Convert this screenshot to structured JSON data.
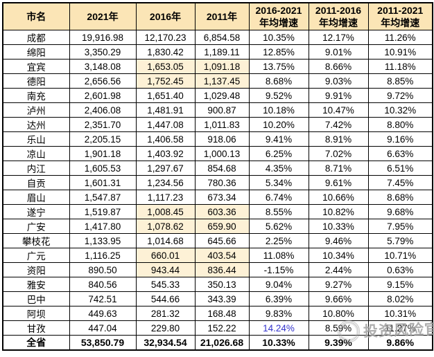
{
  "colors": {
    "header_bg": "#FBE5B6",
    "highlight_bg": "#FDF1D6",
    "border": "#000000",
    "accent_blue": "#3333CC",
    "watermark_gray": "#7D7D7D"
  },
  "chart_data": {
    "type": "table",
    "columns": [
      {
        "label": "市名",
        "sublabel": ""
      },
      {
        "label": "2021年",
        "sublabel": ""
      },
      {
        "label": "2016年",
        "sublabel": ""
      },
      {
        "label": "2011年",
        "sublabel": ""
      },
      {
        "label": "2016-2021",
        "sublabel": "年均增速"
      },
      {
        "label": "2011-2016",
        "sublabel": "年均增速"
      },
      {
        "label": "2011-2021",
        "sublabel": "年均增速"
      }
    ],
    "rows": [
      {
        "name": "成都",
        "v2021": "19,916.98",
        "v2016": "12,170.23",
        "v2011": "6,854.58",
        "g2016_2021": "10.35%",
        "g2011_2016": "12.17%",
        "g2011_2021": "11.26%",
        "highlight": false,
        "blue_g2016_2021": false,
        "total": false
      },
      {
        "name": "绵阳",
        "v2021": "3,350.29",
        "v2016": "1,830.42",
        "v2011": "1,189.11",
        "g2016_2021": "12.85%",
        "g2011_2016": "9.01%",
        "g2011_2021": "10.91%",
        "highlight": false,
        "blue_g2016_2021": false,
        "total": false
      },
      {
        "name": "宜宾",
        "v2021": "3,148.08",
        "v2016": "1,653.05",
        "v2011": "1,091.18",
        "g2016_2021": "13.75%",
        "g2011_2016": "8.66%",
        "g2011_2021": "11.18%",
        "highlight": true,
        "blue_g2016_2021": false,
        "total": false
      },
      {
        "name": "德阳",
        "v2021": "2,656.56",
        "v2016": "1,752.45",
        "v2011": "1,137.45",
        "g2016_2021": "8.68%",
        "g2011_2016": "9.03%",
        "g2011_2021": "8.85%",
        "highlight": true,
        "blue_g2016_2021": false,
        "total": false
      },
      {
        "name": "南充",
        "v2021": "2,601.98",
        "v2016": "1,651.40",
        "v2011": "1,029.48",
        "g2016_2021": "9.52%",
        "g2011_2016": "9.91%",
        "g2011_2021": "9.72%",
        "highlight": false,
        "blue_g2016_2021": false,
        "total": false
      },
      {
        "name": "泸州",
        "v2021": "2,406.08",
        "v2016": "1,481.91",
        "v2011": "900.87",
        "g2016_2021": "10.18%",
        "g2011_2016": "10.47%",
        "g2011_2021": "10.32%",
        "highlight": false,
        "blue_g2016_2021": false,
        "total": false
      },
      {
        "name": "达州",
        "v2021": "2,351.70",
        "v2016": "1,447.08",
        "v2011": "1,011.83",
        "g2016_2021": "10.20%",
        "g2011_2016": "7.42%",
        "g2011_2021": "8.80%",
        "highlight": false,
        "blue_g2016_2021": false,
        "total": false
      },
      {
        "name": "乐山",
        "v2021": "2,205.15",
        "v2016": "1,406.58",
        "v2011": "918.06",
        "g2016_2021": "9.41%",
        "g2011_2016": "8.91%",
        "g2011_2021": "9.16%",
        "highlight": false,
        "blue_g2016_2021": false,
        "total": false
      },
      {
        "name": "凉山",
        "v2021": "1,901.18",
        "v2016": "1,403.92",
        "v2011": "1,000.13",
        "g2016_2021": "6.25%",
        "g2011_2016": "7.02%",
        "g2011_2021": "6.63%",
        "highlight": false,
        "blue_g2016_2021": false,
        "total": false
      },
      {
        "name": "内江",
        "v2021": "1,605.53",
        "v2016": "1,297.67",
        "v2011": "854.68",
        "g2016_2021": "4.35%",
        "g2011_2016": "8.71%",
        "g2011_2021": "6.51%",
        "highlight": false,
        "blue_g2016_2021": false,
        "total": false
      },
      {
        "name": "自贡",
        "v2021": "1,601.31",
        "v2016": "1,234.56",
        "v2011": "780.36",
        "g2016_2021": "5.34%",
        "g2011_2016": "9.61%",
        "g2011_2021": "7.45%",
        "highlight": false,
        "blue_g2016_2021": false,
        "total": false
      },
      {
        "name": "眉山",
        "v2021": "1,547.87",
        "v2016": "1,117.23",
        "v2011": "673.34",
        "g2016_2021": "6.74%",
        "g2011_2016": "10.66%",
        "g2011_2021": "8.68%",
        "highlight": false,
        "blue_g2016_2021": false,
        "total": false
      },
      {
        "name": "遂宁",
        "v2021": "1,519.87",
        "v2016": "1,008.45",
        "v2011": "603.36",
        "g2016_2021": "8.55%",
        "g2011_2016": "10.82%",
        "g2011_2021": "9.68%",
        "highlight": true,
        "blue_g2016_2021": false,
        "total": false
      },
      {
        "name": "广安",
        "v2021": "1,417.80",
        "v2016": "1,078.62",
        "v2011": "659.90",
        "g2016_2021": "5.62%",
        "g2011_2016": "10.33%",
        "g2011_2021": "7.95%",
        "highlight": true,
        "blue_g2016_2021": false,
        "total": false
      },
      {
        "name": "攀枝花",
        "v2021": "1,133.95",
        "v2016": "1,014.68",
        "v2011": "645.66",
        "g2016_2021": "2.25%",
        "g2011_2016": "9.46%",
        "g2011_2021": "5.79%",
        "highlight": false,
        "blue_g2016_2021": false,
        "total": false
      },
      {
        "name": "广元",
        "v2021": "1,116.25",
        "v2016": "660.01",
        "v2011": "403.54",
        "g2016_2021": "11.08%",
        "g2011_2016": "10.34%",
        "g2011_2021": "10.71%",
        "highlight": true,
        "blue_g2016_2021": false,
        "total": false
      },
      {
        "name": "资阳",
        "v2021": "890.50",
        "v2016": "943.44",
        "v2011": "836.44",
        "g2016_2021": "-1.15%",
        "g2011_2016": "2.44%",
        "g2011_2021": "0.63%",
        "highlight": true,
        "blue_g2016_2021": false,
        "total": false
      },
      {
        "name": "雅安",
        "v2021": "840.56",
        "v2016": "545.33",
        "v2011": "350.13",
        "g2016_2021": "9.04%",
        "g2011_2016": "9.27%",
        "g2011_2021": "9.15%",
        "highlight": false,
        "blue_g2016_2021": false,
        "total": false
      },
      {
        "name": "巴中",
        "v2021": "742.51",
        "v2016": "544.66",
        "v2011": "343.39",
        "g2016_2021": "6.39%",
        "g2011_2016": "9.66%",
        "g2011_2021": "8.02%",
        "highlight": false,
        "blue_g2016_2021": false,
        "total": false
      },
      {
        "name": "阿坝",
        "v2021": "449.63",
        "v2016": "281.32",
        "v2011": "168.48",
        "g2016_2021": "9.83%",
        "g2011_2016": "10.80%",
        "g2011_2021": "10.31%",
        "highlight": false,
        "blue_g2016_2021": false,
        "total": false
      },
      {
        "name": "甘孜",
        "v2021": "447.04",
        "v2016": "229.80",
        "v2011": "152.22",
        "g2016_2021": "14.24%",
        "g2011_2016": "8.59%",
        "g2011_2021": "11.27%",
        "highlight": false,
        "blue_g2016_2021": true,
        "total": false
      },
      {
        "name": "全省",
        "v2021": "53,850.79",
        "v2016": "32,934.54",
        "v2011": "21,026.68",
        "g2016_2021": "10.33%",
        "g2011_2016": "9.39%",
        "g2011_2021": "9.86%",
        "highlight": false,
        "blue_g2016_2021": false,
        "total": true
      }
    ]
  },
  "watermark": {
    "icon": "circle-logo-icon",
    "text": "投资风险官"
  }
}
